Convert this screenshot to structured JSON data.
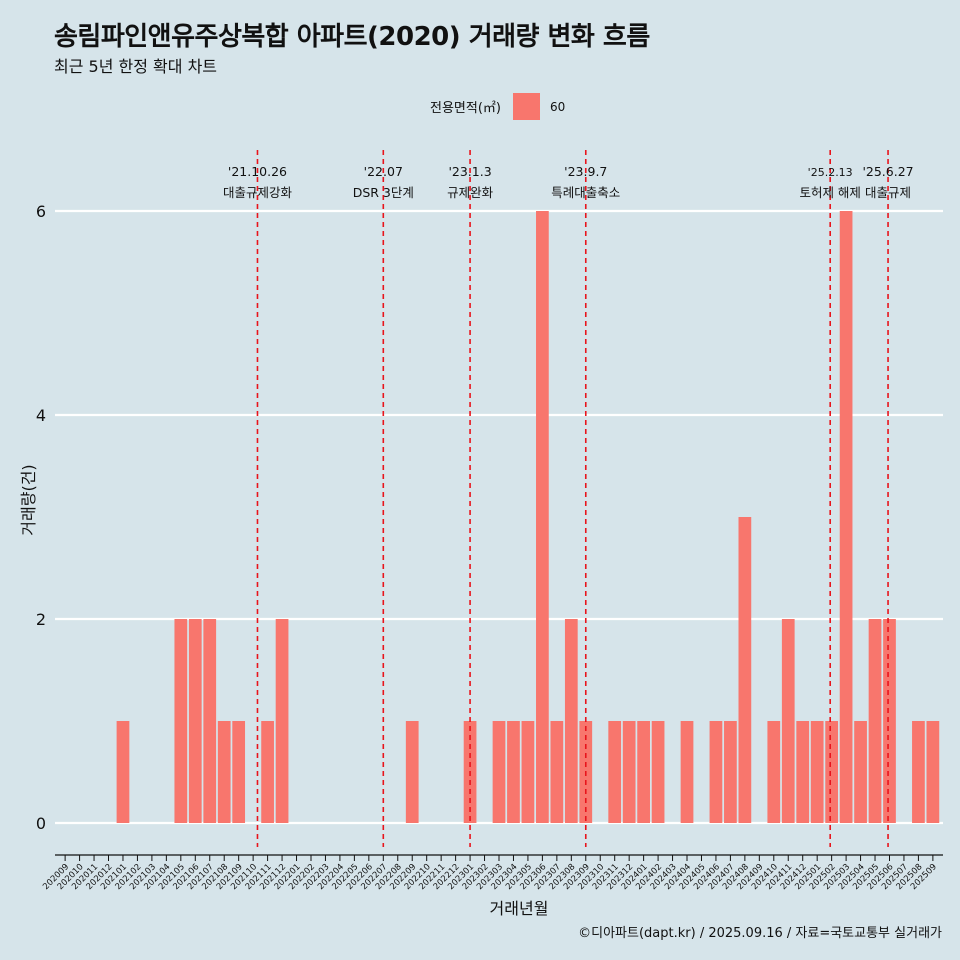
{
  "title": "송림파인앤유주상복합 아파트(2020) 거래량 변화 흐름",
  "subtitle": "최근 5년 한정 확대 차트",
  "caption": "©디아파트(dapt.kr) / 2025.09.16 / 자료=국토교통부 실거래가",
  "legend": {
    "title": "전용면적(㎡)",
    "items": [
      {
        "label": "60",
        "color": "#f8766d"
      }
    ]
  },
  "chart_data": {
    "type": "bar",
    "xlabel": "거래년월",
    "ylabel": "거래량(건)",
    "ylim": [
      0,
      6.3
    ],
    "yticks": [
      0,
      2,
      4,
      6
    ],
    "categories": [
      "202009",
      "202010",
      "202011",
      "202012",
      "202101",
      "202102",
      "202103",
      "202104",
      "202105",
      "202106",
      "202107",
      "202108",
      "202109",
      "202110",
      "202111",
      "202112",
      "202201",
      "202202",
      "202203",
      "202204",
      "202205",
      "202206",
      "202207",
      "202208",
      "202209",
      "202210",
      "202211",
      "202212",
      "202301",
      "202302",
      "202303",
      "202304",
      "202305",
      "202306",
      "202307",
      "202308",
      "202309",
      "202310",
      "202311",
      "202312",
      "202401",
      "202402",
      "202403",
      "202404",
      "202405",
      "202406",
      "202407",
      "202408",
      "202409",
      "202410",
      "202411",
      "202412",
      "202501",
      "202502",
      "202503",
      "202504",
      "202505",
      "202506",
      "202507",
      "202508",
      "202509"
    ],
    "series": [
      {
        "name": "60",
        "color": "#f8766d",
        "values": [
          0,
          0,
          0,
          0,
          1,
          0,
          0,
          0,
          2,
          2,
          2,
          1,
          1,
          0,
          1,
          2,
          0,
          0,
          0,
          0,
          0,
          0,
          0,
          0,
          1,
          0,
          0,
          0,
          1,
          0,
          1,
          1,
          1,
          6,
          1,
          2,
          1,
          0,
          1,
          1,
          1,
          1,
          0,
          1,
          0,
          1,
          1,
          3,
          0,
          1,
          2,
          1,
          1,
          1,
          6,
          1,
          2,
          2,
          0,
          1,
          1
        ]
      }
    ],
    "annotations": [
      {
        "date": "'21.10.26",
        "label": "대출규제강화",
        "x_index": 13.3,
        "row": "upper"
      },
      {
        "date": "'22.07",
        "label": "DSR 3단계",
        "x_index": 22.0,
        "row": "upper"
      },
      {
        "date": "'23.1.3",
        "label": "규제완화",
        "x_index": 28.0,
        "row": "upper"
      },
      {
        "date": "'23.9.7",
        "label": "특례대출축소",
        "x_index": 36.0,
        "row": "upper"
      },
      {
        "date": "'25.2.13",
        "label": "토허제 해제",
        "x_index": 52.9,
        "row": "upper"
      },
      {
        "date": "'25.6.27",
        "label": "대출규제",
        "x_index": 56.9,
        "row": "upper"
      }
    ]
  }
}
